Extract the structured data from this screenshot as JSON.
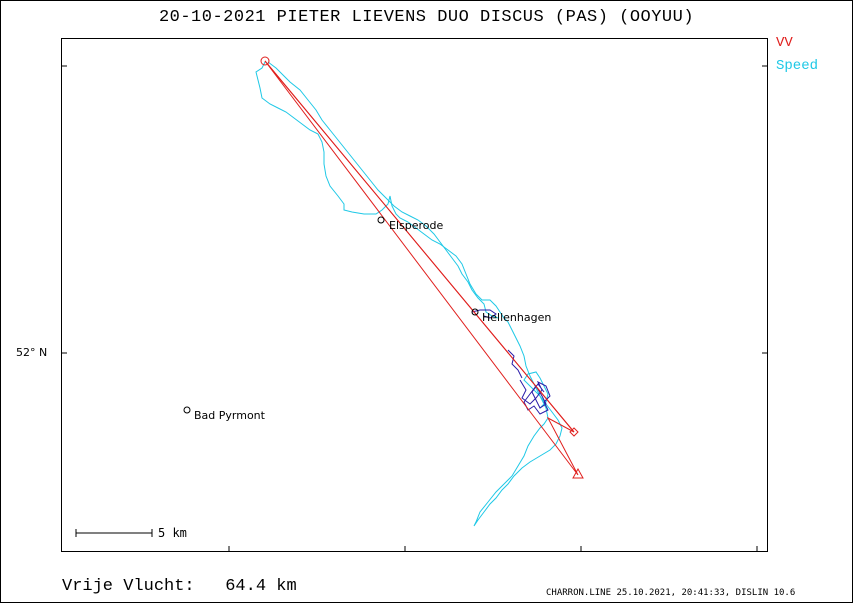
{
  "title": "20-10-2021    PIETER LIEVENS    DUO DISCUS (PAS) (OOYUU)",
  "legend": {
    "vv": "VV",
    "speed": "Speed"
  },
  "colors": {
    "route": "#e0201e",
    "track": "#1ec8e6",
    "track_dark": "#2a1aa8",
    "frame": "#000000"
  },
  "latitude_label": "52° N",
  "places": [
    {
      "name": "Elsperode"
    },
    {
      "name": "Hellenhagen"
    },
    {
      "name": "Bad Pyrmont"
    }
  ],
  "scale_bar": {
    "label": "5  km"
  },
  "distance": {
    "label": "Vrije Vlucht:",
    "value": "64.4 km"
  },
  "footer": "CHARRON.LINE 25.10.2021, 20:41:33, DISLIN 10.6"
}
